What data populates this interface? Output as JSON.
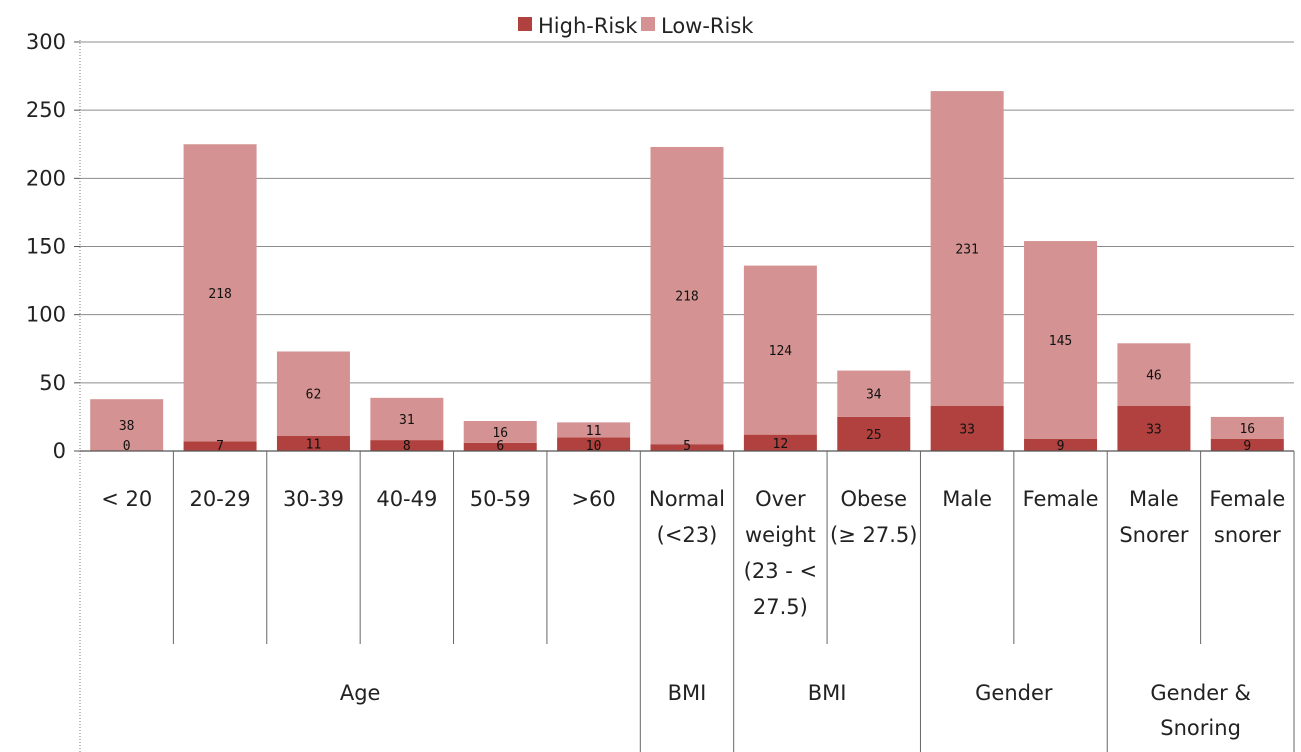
{
  "chart_data": {
    "type": "bar",
    "stacked": true,
    "categories": [
      [
        "< 20"
      ],
      [
        "20-29"
      ],
      [
        "30-39"
      ],
      [
        "40-49"
      ],
      [
        "50-59"
      ],
      [
        ">60"
      ],
      [
        "Normal",
        "(<23)"
      ],
      [
        "Over",
        "weight",
        "(23 - <",
        "27.5)"
      ],
      [
        "Obese",
        "(≥ 27.5)"
      ],
      [
        "Male"
      ],
      [
        "Female"
      ],
      [
        "Male",
        "Snorer"
      ],
      [
        "Female",
        "snorer"
      ]
    ],
    "groups": [
      {
        "label": [
          "Age"
        ],
        "start": 0,
        "end": 5
      },
      {
        "label": [
          "BMI"
        ],
        "start": 6,
        "end": 6
      },
      {
        "label": [
          "BMI"
        ],
        "start": 7,
        "end": 8
      },
      {
        "label": [
          "Gender"
        ],
        "start": 9,
        "end": 10
      },
      {
        "label": [
          "Gender &",
          "Snoring"
        ],
        "start": 11,
        "end": 12
      }
    ],
    "series": [
      {
        "name": "High-Risk",
        "color": "#b0413e",
        "values": [
          0,
          7,
          11,
          8,
          6,
          10,
          5,
          12,
          25,
          33,
          9,
          33,
          9
        ]
      },
      {
        "name": "Low-Risk",
        "color": "#d49392",
        "values": [
          38,
          218,
          62,
          31,
          16,
          11,
          218,
          124,
          34,
          231,
          145,
          46,
          16
        ]
      }
    ],
    "ylim": [
      0,
      300
    ],
    "yticks": [
      0,
      50,
      100,
      150,
      200,
      250,
      300
    ],
    "grid": true,
    "legend_position": "top"
  }
}
